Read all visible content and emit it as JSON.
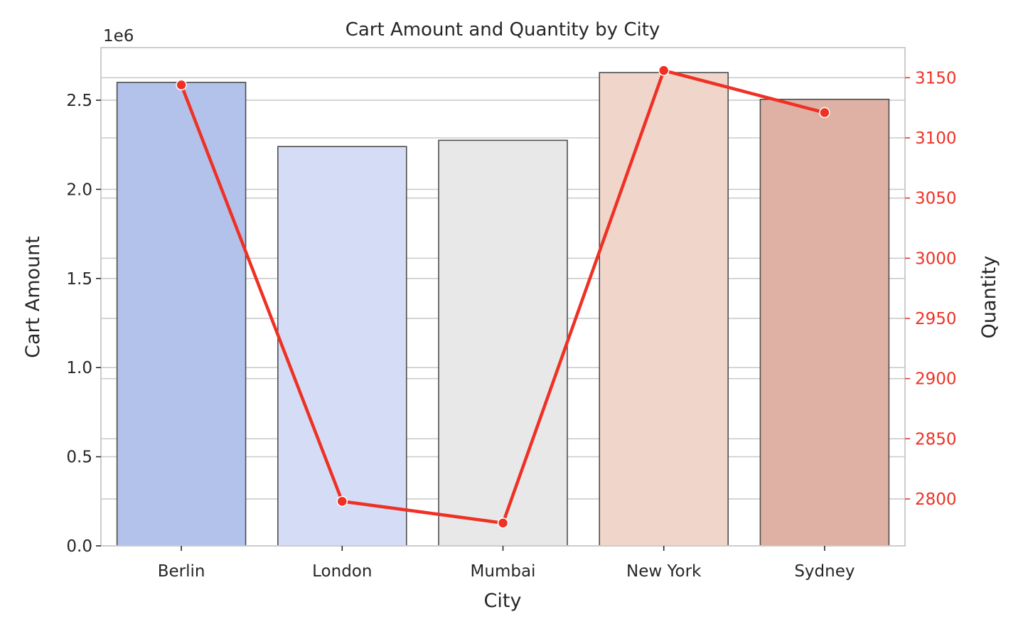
{
  "chart_data": {
    "type": "bar",
    "title": "Cart Amount and Quantity by City",
    "xlabel": "City",
    "categories": [
      "Berlin",
      "London",
      "Mumbai",
      "New York",
      "Sydney"
    ],
    "left_axis": {
      "label": "Cart Amount",
      "offset_text": "1e6",
      "range": [
        0,
        2.795
      ],
      "ticks": [
        0.0,
        0.5,
        1.0,
        1.5,
        2.0,
        2.5
      ],
      "tick_labels": [
        "0.0",
        "0.5",
        "1.0",
        "1.5",
        "2.0",
        "2.5"
      ]
    },
    "right_axis": {
      "label": "Quantity",
      "color": "#ee3124",
      "range": [
        2761,
        3175
      ],
      "ticks": [
        2800,
        2850,
        2900,
        2950,
        3000,
        3050,
        3100,
        3150
      ],
      "tick_labels": [
        "2800",
        "2850",
        "2900",
        "2950",
        "3000",
        "3050",
        "3100",
        "3150"
      ]
    },
    "series": [
      {
        "type": "bar",
        "axis": "left",
        "values": [
          2.6,
          2.24,
          2.275,
          2.655,
          2.505
        ],
        "colors": [
          "#b3c2eb",
          "#d4ddf5",
          "#e8e8e8",
          "#f0d5ca",
          "#deb1a4"
        ]
      },
      {
        "type": "line",
        "axis": "right",
        "values": [
          3144,
          2798,
          2780,
          3156,
          3121
        ],
        "color": "#ee3124"
      }
    ],
    "grid": true,
    "legend": "none"
  }
}
